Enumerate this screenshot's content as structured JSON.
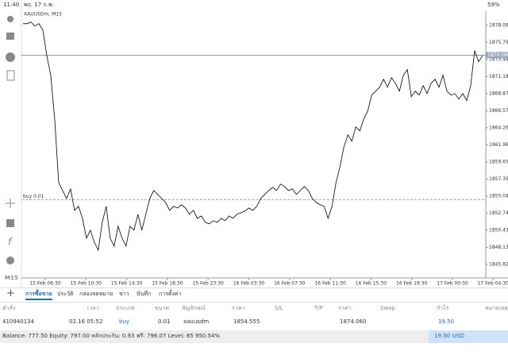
{
  "status_bar": {
    "time": "11:40",
    "date": "พฤ. 17 ก.พ.",
    "battery": "59%"
  },
  "chart_data": {
    "type": "line",
    "title": "XAUUSDm, M15",
    "color": "#000000",
    "values": [
      1878.31,
      1878.31,
      1878.53,
      1877.99,
      1878.31,
      1877.45,
      1874.03,
      1871.35,
      1865.45,
      1856.87,
      1855.8,
      1854.73,
      1856.01,
      1853.12,
      1853.66,
      1852.05,
      1849.37,
      1850.44,
      1848.83,
      1847.76,
      1851.51,
      1853.66,
      1849.37,
      1848.3,
      1850.98,
      1849.37,
      1848.3,
      1850.98,
      1850.44,
      1852.59,
      1850.44,
      1852.59,
      1854.73,
      1855.8,
      1855.27,
      1854.73,
      1854.19,
      1853.12,
      1853.66,
      1853.44,
      1853.87,
      1853.44,
      1852.59,
      1853.12,
      1852.05,
      1852.37,
      1851.51,
      1851.3,
      1851.73,
      1851.51,
      1852.05,
      1851.73,
      1852.37,
      1852.05,
      1852.59,
      1852.8,
      1853.02,
      1853.44,
      1853.12,
      1853.66,
      1854.73,
      1855.27,
      1855.8,
      1856.23,
      1855.8,
      1856.66,
      1856.34,
      1855.8,
      1856.01,
      1855.27,
      1855.8,
      1856.34,
      1855.8,
      1854.73,
      1854.19,
      1853.87,
      1853.66,
      1852.05,
      1853.66,
      1856.87,
      1859.02,
      1861.7,
      1863.31,
      1862.45,
      1864.38,
      1863.84,
      1865.45,
      1866.52,
      1868.67,
      1869.2,
      1869.74,
      1870.81,
      1869.74,
      1871.02,
      1870.27,
      1869.2,
      1871.35,
      1872.1,
      1868.45,
      1869.2,
      1868.67,
      1869.95,
      1868.88,
      1870.27,
      1870.81,
      1869.74,
      1871.35,
      1869.2,
      1868.67,
      1868.88,
      1868.13,
      1868.88,
      1867.92,
      1869.95,
      1874.67,
      1873.17,
      1874.03
    ],
    "ylim": [
      1844.0,
      1880.0
    ],
    "yticks": [
      1878.095,
      {
        "value": 1875.79,
        "label": "1875.790"
      },
      1873.485,
      {
        "value": 1871.18,
        "label": "1871.180"
      },
      1868.875,
      {
        "value": 1866.57,
        "label": "1866.570"
      },
      1864.265,
      {
        "value": 1861.96,
        "label": "1861.960"
      },
      1859.655,
      {
        "value": 1857.35,
        "label": "1857.350"
      },
      1855.045,
      {
        "value": 1852.74,
        "label": "1852.740"
      },
      1850.435,
      {
        "value": 1848.13,
        "label": "1848.130"
      },
      1845.825
    ],
    "x_labels": [
      "15 Feb 06:30",
      "15 Feb 10:30",
      "15 Feb 14:30",
      "15 Feb 18:30",
      "15 Feb 23:30",
      "16 Feb 03:30",
      "16 Feb 07:30",
      "16 Feb 11:30",
      "16 Feb 15:30",
      "16 Feb 19:30",
      "17 Feb 00:30",
      "17 Feb 04:30"
    ],
    "bid_line": {
      "value": 1874.06,
      "label": "1874.060"
    },
    "order_line": {
      "value": 1854.555,
      "label": "buy 0.01"
    },
    "timeframe": "M15"
  },
  "tabs": [
    "การซื้อขาย",
    "ประวัติ",
    "กล่องจดหมาย",
    "ข่าว",
    "บันทึก",
    "การตั้งค่า"
  ],
  "active_tab": 0,
  "table": {
    "columns": [
      "คำสั่ง",
      "เวลา",
      "ประเภท",
      "ขนาด",
      "สัญลักษณ์",
      "ราคา",
      "S/L",
      "T/P",
      "ราคา",
      "Swap",
      "กำไร",
      "หมายเหตุ"
    ],
    "rows": [
      [
        "410940134",
        "02.16 05:52",
        "buy",
        "0.01",
        "xauusdm",
        "1854.555",
        null,
        null,
        "1874.060",
        null,
        "19.50",
        null
      ]
    ]
  },
  "footer": {
    "summary": "Balance: 777.50 Equity: 797.00 หลักประกัน: 0.93 ฟรี: 796.07 Level: 85 950.54%",
    "profit": "19.50",
    "currency": "USD"
  }
}
